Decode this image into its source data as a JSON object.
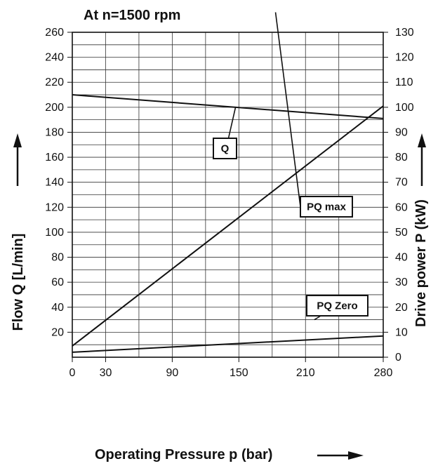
{
  "chart_data": {
    "type": "line",
    "title": "At n=1500 rpm",
    "xlabel": "Operating Pressure p (bar)",
    "ylabel": "Flow Q [L/min]",
    "y2label": "Drive power P (kW)",
    "xlim": [
      0,
      280
    ],
    "ylim": [
      0,
      260
    ],
    "y2lim": [
      0,
      130
    ],
    "x_ticks": [
      0,
      30,
      90,
      150,
      210,
      280
    ],
    "x_grid": [
      0,
      30,
      60,
      90,
      120,
      150,
      180,
      210,
      240,
      280
    ],
    "y_ticks": [
      20,
      40,
      60,
      80,
      100,
      120,
      140,
      160,
      180,
      200,
      220,
      240,
      260
    ],
    "y2_ticks": [
      0,
      10,
      20,
      30,
      40,
      50,
      60,
      70,
      80,
      90,
      100,
      110,
      120,
      130
    ],
    "grid": true,
    "series": [
      {
        "name": "Q",
        "axis": "left",
        "x": [
          0,
          280
        ],
        "y": [
          210,
          191
        ]
      },
      {
        "name": "PQ max",
        "axis": "right",
        "x": [
          0,
          280
        ],
        "y": [
          4.5,
          100.5
        ]
      },
      {
        "name": "PQ Zero",
        "axis": "right",
        "x": [
          0,
          280
        ],
        "y": [
          2,
          8.5
        ]
      }
    ],
    "callouts": [
      {
        "series": "Q",
        "label": "Q",
        "anchor": [
          147,
          200
        ]
      },
      {
        "series": "PQ max",
        "label": "PQ max",
        "anchor": [
          183,
          138
        ]
      },
      {
        "series": "PQ Zero",
        "label": "PQ Zero",
        "anchor": [
          218,
          15
        ]
      }
    ]
  }
}
